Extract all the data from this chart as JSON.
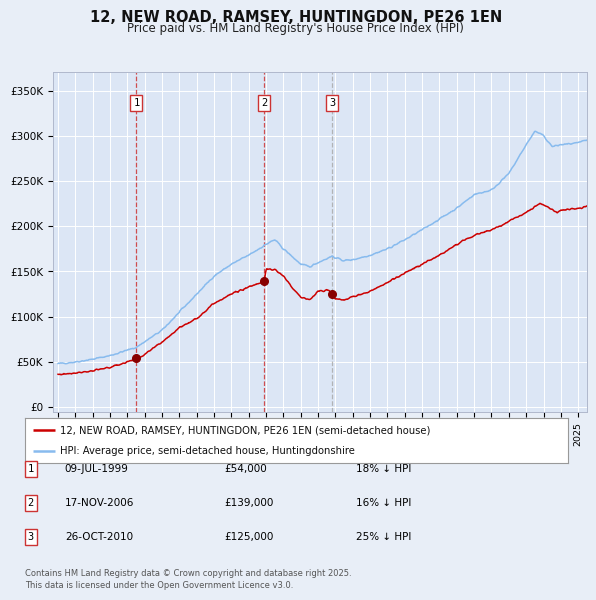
{
  "title": "12, NEW ROAD, RAMSEY, HUNTINGDON, PE26 1EN",
  "subtitle": "Price paid vs. HM Land Registry's House Price Index (HPI)",
  "fig_bg_color": "#e8eef7",
  "plot_bg_color": "#dce6f5",
  "hpi_color": "#88bbee",
  "price_color": "#cc0000",
  "sale_marker_color": "#880000",
  "vline12_color": "#cc3333",
  "vline3_color": "#aaaaaa",
  "ylabel_values": [
    "£0",
    "£50K",
    "£100K",
    "£150K",
    "£200K",
    "£250K",
    "£300K",
    "£350K"
  ],
  "ytick_values": [
    0,
    50000,
    100000,
    150000,
    200000,
    250000,
    300000,
    350000
  ],
  "xlim_start": 1994.7,
  "xlim_end": 2025.5,
  "ylim_min": -5000,
  "ylim_max": 370000,
  "sale1_year": 1999.52,
  "sale1_price": 54000,
  "sale2_year": 2006.88,
  "sale2_price": 139000,
  "sale3_year": 2010.82,
  "sale3_price": 125000,
  "legend_label_price": "12, NEW ROAD, RAMSEY, HUNTINGDON, PE26 1EN (semi-detached house)",
  "legend_label_hpi": "HPI: Average price, semi-detached house, Huntingdonshire",
  "table_entries": [
    {
      "num": "1",
      "date": "09-JUL-1999",
      "price": "£54,000",
      "note": "18% ↓ HPI"
    },
    {
      "num": "2",
      "date": "17-NOV-2006",
      "price": "£139,000",
      "note": "16% ↓ HPI"
    },
    {
      "num": "3",
      "date": "26-OCT-2010",
      "price": "£125,000",
      "note": "25% ↓ HPI"
    }
  ],
  "footnote": "Contains HM Land Registry data © Crown copyright and database right 2025.\nThis data is licensed under the Open Government Licence v3.0."
}
